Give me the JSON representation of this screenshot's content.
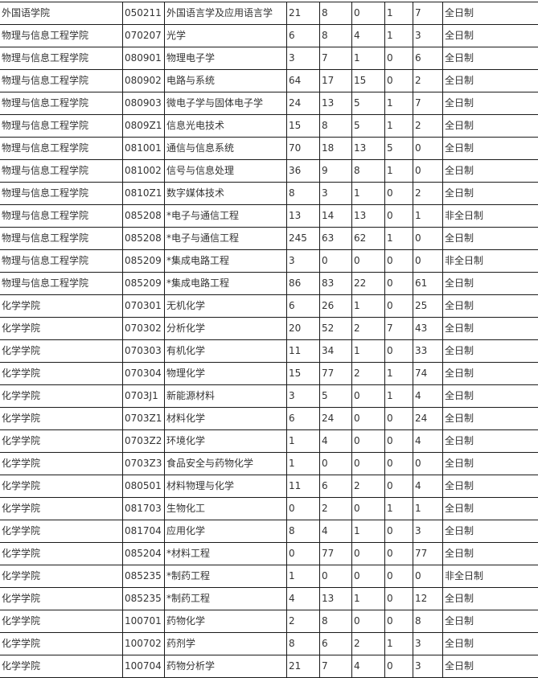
{
  "table": {
    "rows": [
      [
        "外国语学院",
        "050211",
        "外国语言学及应用语言学",
        "21",
        "8",
        "0",
        "1",
        "7",
        "全日制"
      ],
      [
        "物理与信息工程学院",
        "070207",
        "光学",
        "6",
        "8",
        "4",
        "1",
        "3",
        "全日制"
      ],
      [
        "物理与信息工程学院",
        "080901",
        "物理电子学",
        "3",
        "7",
        "1",
        "0",
        "6",
        "全日制"
      ],
      [
        "物理与信息工程学院",
        "080902",
        "电路与系统",
        "64",
        "17",
        "15",
        "0",
        "2",
        "全日制"
      ],
      [
        "物理与信息工程学院",
        "080903",
        "微电子学与固体电子学",
        "24",
        "13",
        "5",
        "1",
        "7",
        "全日制"
      ],
      [
        "物理与信息工程学院",
        "0809Z1",
        "信息光电技术",
        "15",
        "8",
        "5",
        "1",
        "2",
        "全日制"
      ],
      [
        "物理与信息工程学院",
        "081001",
        "通信与信息系统",
        "70",
        "18",
        "13",
        "5",
        "0",
        "全日制"
      ],
      [
        "物理与信息工程学院",
        "081002",
        "信号与信息处理",
        "36",
        "9",
        "8",
        "1",
        "0",
        "全日制"
      ],
      [
        "物理与信息工程学院",
        "0810Z1",
        "数字媒体技术",
        "8",
        "3",
        "1",
        "0",
        "2",
        "全日制"
      ],
      [
        "物理与信息工程学院",
        "085208",
        "*电子与通信工程",
        "13",
        "14",
        "13",
        "0",
        "1",
        "非全日制"
      ],
      [
        "物理与信息工程学院",
        "085208",
        "*电子与通信工程",
        "245",
        "63",
        "62",
        "1",
        "0",
        "全日制"
      ],
      [
        "物理与信息工程学院",
        "085209",
        "*集成电路工程",
        "3",
        "0",
        "0",
        "0",
        "0",
        "非全日制"
      ],
      [
        "物理与信息工程学院",
        "085209",
        "*集成电路工程",
        "86",
        "83",
        "22",
        "0",
        "61",
        "全日制"
      ],
      [
        "化学学院",
        "070301",
        "无机化学",
        "6",
        "26",
        "1",
        "0",
        "25",
        "全日制"
      ],
      [
        "化学学院",
        "070302",
        "分析化学",
        "20",
        "52",
        "2",
        "7",
        "43",
        "全日制"
      ],
      [
        "化学学院",
        "070303",
        "有机化学",
        "11",
        "34",
        "1",
        "0",
        "33",
        "全日制"
      ],
      [
        "化学学院",
        "070304",
        "物理化学",
        "15",
        "77",
        "2",
        "1",
        "74",
        "全日制"
      ],
      [
        "化学学院",
        "0703J1",
        "新能源材料",
        "3",
        "5",
        "0",
        "1",
        "4",
        "全日制"
      ],
      [
        "化学学院",
        "0703Z1",
        "材料化学",
        "6",
        "24",
        "0",
        "0",
        "24",
        "全日制"
      ],
      [
        "化学学院",
        "0703Z2",
        "环境化学",
        "1",
        "4",
        "0",
        "0",
        "4",
        "全日制"
      ],
      [
        "化学学院",
        "0703Z3",
        "食品安全与药物化学",
        "1",
        "0",
        "0",
        "0",
        "0",
        "全日制"
      ],
      [
        "化学学院",
        "080501",
        "材料物理与化学",
        "11",
        "6",
        "2",
        "0",
        "4",
        "全日制"
      ],
      [
        "化学学院",
        "081703",
        "生物化工",
        "0",
        "2",
        "0",
        "1",
        "1",
        "全日制"
      ],
      [
        "化学学院",
        "081704",
        "应用化学",
        "8",
        "4",
        "1",
        "0",
        "3",
        "全日制"
      ],
      [
        "化学学院",
        "085204",
        "*材料工程",
        "0",
        "77",
        "0",
        "0",
        "77",
        "全日制"
      ],
      [
        "化学学院",
        "085235",
        "*制药工程",
        "1",
        "0",
        "0",
        "0",
        "0",
        "非全日制"
      ],
      [
        "化学学院",
        "085235",
        "*制药工程",
        "4",
        "13",
        "1",
        "0",
        "12",
        "全日制"
      ],
      [
        "化学学院",
        "100701",
        "药物化学",
        "2",
        "8",
        "0",
        "0",
        "8",
        "全日制"
      ],
      [
        "化学学院",
        "100702",
        "药剂学",
        "8",
        "6",
        "2",
        "1",
        "3",
        "全日制"
      ],
      [
        "化学学院",
        "100704",
        "药物分析学",
        "21",
        "7",
        "4",
        "0",
        "3",
        "全日制"
      ]
    ]
  }
}
